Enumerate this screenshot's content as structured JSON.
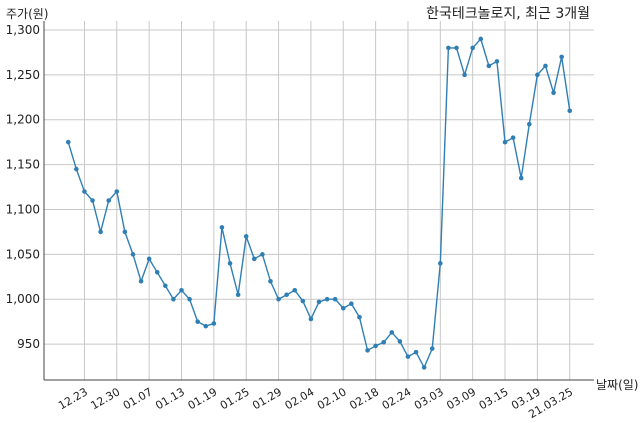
{
  "chart_data": {
    "type": "line",
    "title": "한국테크놀로지, 최근 3개월",
    "ylabel": "주가(원)",
    "xlabel": "날짜(일)",
    "ylim": [
      910,
      1310
    ],
    "yticks": [
      950,
      1000,
      1050,
      1100,
      1150,
      1200,
      1250,
      1300
    ],
    "ytick_labels": [
      "950",
      "1,000",
      "1,050",
      "1,100",
      "1,150",
      "1,200",
      "1,250",
      "1,300"
    ],
    "xtick_labels": [
      "12.23",
      "12.30",
      "01.07",
      "01.13",
      "01.19",
      "01.25",
      "01.29",
      "02.04",
      "02.10",
      "02.18",
      "02.24",
      "03.03",
      "03.09",
      "03.15",
      "03.19",
      "21.03.25"
    ],
    "xtick_positions": [
      2,
      6,
      10,
      14,
      18,
      22,
      26,
      30,
      34,
      38,
      42,
      46,
      50,
      54,
      58,
      62
    ],
    "grid": true,
    "series": [
      {
        "color": "#2f7fb5",
        "x": [
          0,
          1,
          2,
          3,
          4,
          5,
          6,
          7,
          8,
          9,
          10,
          11,
          12,
          13,
          14,
          15,
          16,
          17,
          18,
          19,
          20,
          21,
          22,
          23,
          24,
          25,
          26,
          27,
          28,
          29,
          30,
          31,
          32,
          33,
          34,
          35,
          36,
          37,
          38,
          39,
          40,
          41,
          42,
          43,
          44,
          45,
          46,
          47,
          48,
          49,
          50,
          51,
          52,
          53,
          54,
          55,
          56,
          57,
          58,
          59,
          60,
          61,
          62
        ],
        "values": [
          1175,
          1145,
          1120,
          1110,
          1075,
          1110,
          1120,
          1075,
          1050,
          1020,
          1045,
          1030,
          1015,
          1000,
          1010,
          1000,
          975,
          970,
          973,
          1080,
          1040,
          1005,
          1070,
          1045,
          1050,
          1020,
          1000,
          1005,
          1010,
          998,
          978,
          997,
          1000,
          1000,
          990,
          995,
          980,
          943,
          948,
          952,
          963,
          953,
          936,
          941,
          924,
          945,
          1040,
          1280,
          1280,
          1250,
          1280,
          1290,
          1260,
          1265,
          1175,
          1180,
          1135,
          1195,
          1250,
          1260,
          1230,
          1270,
          1210
        ]
      }
    ]
  }
}
